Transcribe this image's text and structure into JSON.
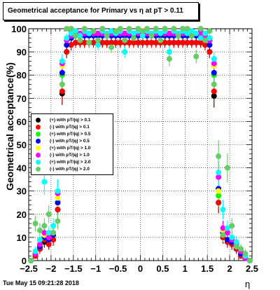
{
  "chart_data": {
    "type": "scatter",
    "title": "Geometrical acceptance for Primary vs   η at pT > 0.11",
    "xlabel": "η",
    "ylabel": "Geometrical acceptance(%)",
    "xlim": [
      -2.5,
      2.5
    ],
    "ylim": [
      0,
      100
    ],
    "x_ticks": [
      "−2.5",
      "−2",
      "−1.5",
      "−1",
      "−0.5",
      "0",
      "0.5",
      "1",
      "1.5",
      "2",
      "2.5"
    ],
    "x_tick_values": [
      -2.5,
      -2,
      -1.5,
      -1,
      -0.5,
      0,
      0.5,
      1,
      1.5,
      2,
      2.5
    ],
    "y_ticks": [
      "0",
      "10",
      "20",
      "30",
      "40",
      "50",
      "60",
      "70",
      "80",
      "90",
      "100"
    ],
    "y_tick_values": [
      0,
      10,
      20,
      30,
      40,
      50,
      60,
      70,
      80,
      90,
      100
    ],
    "grid": true,
    "legend_position": "left",
    "x": [
      -2.45,
      -2.35,
      -2.25,
      -2.15,
      -2.05,
      -1.95,
      -1.85,
      -1.75,
      -1.65,
      -1.55,
      -1.45,
      -1.35,
      -1.25,
      -1.15,
      -1.05,
      -0.95,
      -0.85,
      -0.75,
      -0.65,
      -0.55,
      -0.45,
      -0.35,
      -0.25,
      -0.15,
      -0.05,
      0.05,
      0.15,
      0.25,
      0.35,
      0.45,
      0.55,
      0.65,
      0.75,
      0.85,
      0.95,
      1.05,
      1.15,
      1.25,
      1.35,
      1.45,
      1.55,
      1.65,
      1.75,
      1.85,
      1.95,
      2.05,
      2.15,
      2.25,
      2.35,
      2.45
    ],
    "series": [
      {
        "name": "(+) with pT/|q| > 0.1",
        "color": "#000000",
        "values": [
          0,
          2,
          5,
          8,
          7,
          9,
          22,
          72,
          90,
          93,
          94,
          94,
          94,
          94,
          94,
          94,
          94,
          94,
          94,
          94,
          94,
          94,
          94,
          94,
          94,
          94,
          94,
          94,
          94,
          94,
          94,
          94,
          94,
          94,
          94,
          94,
          94,
          94,
          94,
          93,
          90,
          71,
          25,
          10,
          8,
          7,
          5,
          2,
          1,
          0
        ]
      },
      {
        "name": "(-) with pT/|q| > 0.1",
        "color": "#ff0000",
        "values": [
          0,
          2,
          5,
          9,
          7,
          9,
          22,
          73,
          90,
          93,
          94,
          94,
          94,
          94,
          94,
          94,
          94,
          94,
          94,
          94,
          94,
          94,
          94,
          94,
          94,
          94,
          94,
          94,
          94,
          94,
          94,
          94,
          94,
          94,
          94,
          94,
          94,
          94,
          94,
          93,
          90,
          73,
          25,
          10,
          8,
          7,
          5,
          2,
          1,
          0
        ]
      },
      {
        "name": "(+) with pT/|q| > 0.5",
        "color": "#00ff00",
        "values": [
          0,
          3,
          6,
          10,
          9,
          11,
          25,
          80,
          93,
          96,
          97,
          97,
          97,
          97,
          97,
          97,
          97,
          97,
          97,
          97,
          97,
          97,
          97,
          97,
          97,
          97,
          97,
          97,
          97,
          97,
          97,
          97,
          97,
          97,
          97,
          97,
          97,
          97,
          97,
          96,
          93,
          80,
          28,
          12,
          9,
          8,
          6,
          3,
          1,
          0
        ]
      },
      {
        "name": "(-) with pT/|q| > 0.5",
        "color": "#0000ff",
        "values": [
          0,
          3,
          6,
          10,
          9,
          11,
          25,
          81,
          93,
          96,
          97,
          97,
          97,
          97,
          97,
          97,
          97,
          97,
          97,
          97,
          97,
          97,
          97,
          97,
          97,
          97,
          97,
          97,
          97,
          97,
          97,
          97,
          97,
          97,
          97,
          97,
          97,
          97,
          97,
          96,
          93,
          81,
          31,
          12,
          9,
          8,
          6,
          3,
          1,
          0
        ]
      },
      {
        "name": "(+) with pT/|q| > 1.0",
        "color": "#ffff00",
        "values": [
          0,
          3,
          7,
          11,
          10,
          12,
          27,
          84,
          95,
          97,
          98,
          98,
          98,
          98,
          98,
          98,
          98,
          98,
          98,
          98,
          98,
          98,
          98,
          98,
          98,
          98,
          98,
          98,
          98,
          98,
          98,
          98,
          98,
          98,
          98,
          98,
          98,
          98,
          98,
          97,
          95,
          84,
          30,
          13,
          12,
          9,
          7,
          4,
          1,
          0
        ]
      },
      {
        "name": "(-) with pT/|q| > 1.0",
        "color": "#ff00ff",
        "values": [
          0,
          3,
          7,
          12,
          10,
          12,
          29,
          85,
          95,
          97,
          98,
          98,
          98,
          98,
          98,
          98,
          98,
          98,
          98,
          98,
          98,
          98,
          98,
          98,
          98,
          98,
          98,
          98,
          98,
          98,
          98,
          98,
          98,
          98,
          98,
          98,
          98,
          98,
          98,
          97,
          95,
          85,
          36,
          14,
          12,
          9,
          7,
          4,
          1,
          0
        ]
      },
      {
        "name": "(+) with pT/|q| > 2.0",
        "color": "#00ffff",
        "values": [
          0,
          4,
          9,
          34,
          12,
          15,
          30,
          86,
          96,
          98,
          99,
          97,
          99,
          98,
          99,
          93,
          99,
          98,
          99,
          98,
          99,
          90,
          99,
          98,
          99,
          97,
          99,
          98,
          99,
          98,
          99,
          90,
          99,
          98,
          99,
          98,
          99,
          98,
          96,
          98,
          96,
          87,
          38,
          22,
          14,
          10,
          8,
          5,
          2,
          0
        ]
      },
      {
        "name": "(-) with pT/|q| > 2.0",
        "color": "#66cc66",
        "values": [
          0,
          16,
          13,
          15,
          20,
          12,
          17,
          76,
          100,
          100,
          97,
          95,
          100,
          94,
          99,
          95,
          100,
          97,
          92,
          99,
          100,
          95,
          100,
          96,
          100,
          99,
          100,
          97,
          100,
          95,
          100,
          87,
          100,
          97,
          100,
          100,
          97,
          88,
          100,
          95,
          99,
          76,
          45,
          11,
          40,
          15,
          6,
          5,
          3,
          0
        ]
      }
    ]
  },
  "timestamp": "Tue May 15 09:21:28 2018",
  "background_color": "#ffffff"
}
